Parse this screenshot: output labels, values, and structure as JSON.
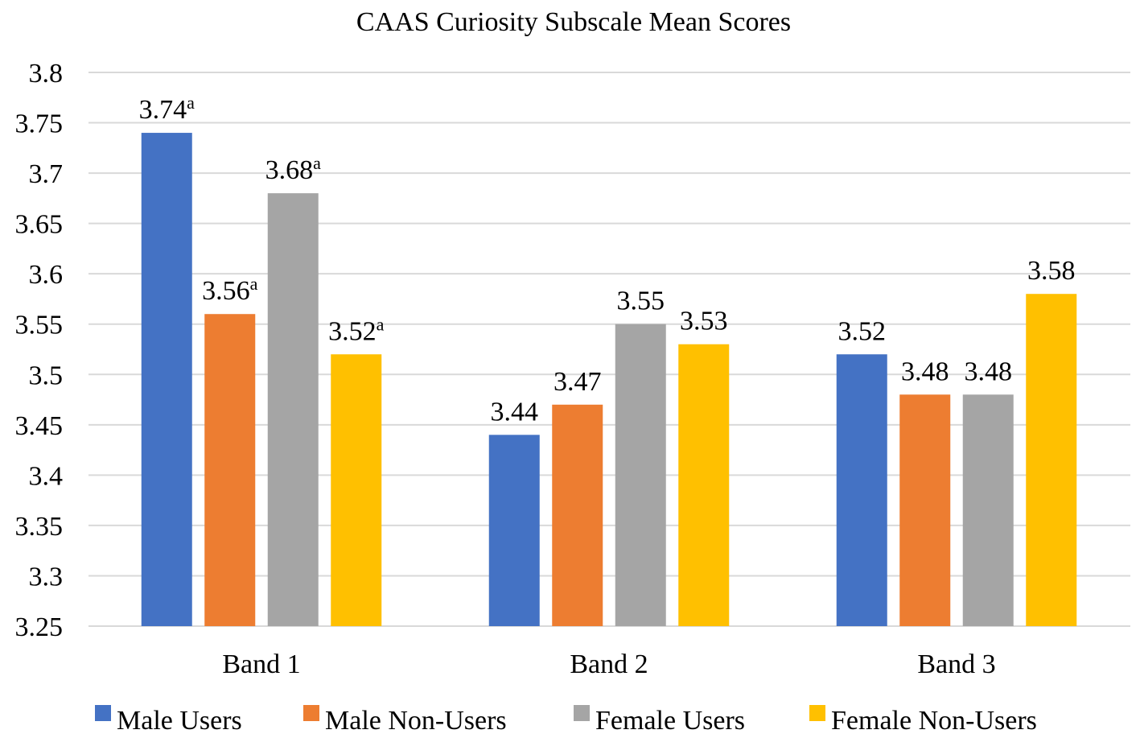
{
  "chart_data": {
    "type": "bar",
    "title": "CAAS Curiosity Subscale Mean Scores",
    "xlabel": "",
    "ylabel": "",
    "ylim": [
      3.25,
      3.8
    ],
    "ytick_step": 0.05,
    "yticks": [
      "3.25",
      "3.3",
      "3.35",
      "3.4",
      "3.45",
      "3.5",
      "3.55",
      "3.6",
      "3.65",
      "3.7",
      "3.75",
      "3.8"
    ],
    "grid": true,
    "legend_position": "bottom",
    "categories": [
      "Band 1",
      "Band 2",
      "Band 3"
    ],
    "series": [
      {
        "name": "Male Users",
        "color": "#4472c4",
        "values": [
          3.74,
          3.44,
          3.52
        ],
        "labels": [
          "3.74",
          "3.44",
          "3.52"
        ],
        "superscripts": [
          "a",
          "",
          ""
        ]
      },
      {
        "name": "Male Non-Users",
        "color": "#ed7d31",
        "values": [
          3.56,
          3.47,
          3.48
        ],
        "labels": [
          "3.56",
          "3.47",
          "3.48"
        ],
        "superscripts": [
          "a",
          "",
          ""
        ]
      },
      {
        "name": "Female Users",
        "color": "#a5a5a5",
        "values": [
          3.68,
          3.55,
          3.48
        ],
        "labels": [
          "3.68",
          "3.55",
          "3.48"
        ],
        "superscripts": [
          "a",
          "",
          ""
        ]
      },
      {
        "name": "Female Non-Users",
        "color": "#ffc000",
        "values": [
          3.52,
          3.53,
          3.58
        ],
        "labels": [
          "3.52",
          "3.53",
          "3.58"
        ],
        "superscripts": [
          "a",
          "",
          ""
        ]
      }
    ]
  }
}
